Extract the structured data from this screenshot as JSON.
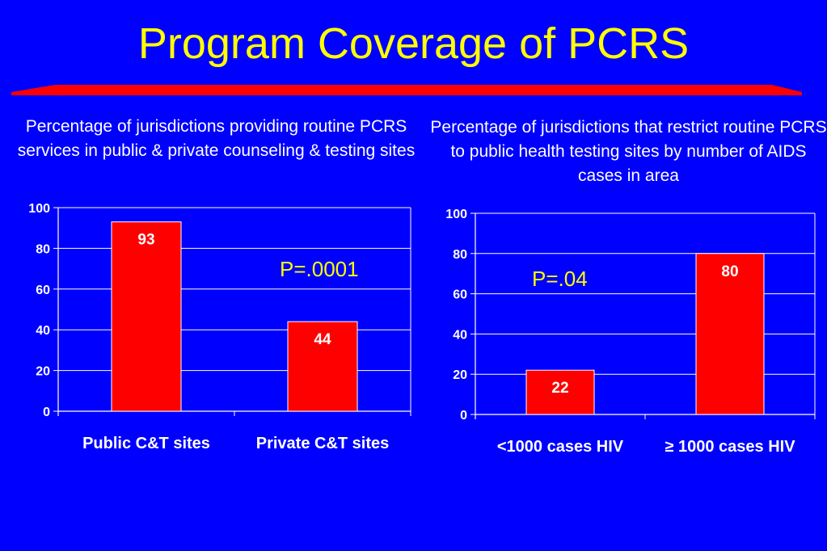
{
  "slide": {
    "title": "Program Coverage of PCRS",
    "colors": {
      "background": "#0000ff",
      "title": "#ffff00",
      "bar": "#ff0000",
      "divider": "#ff0000"
    }
  },
  "left": {
    "subtitle": "Percentage of jurisdictions providing routine PCRS services in public & private counseling & testing sites",
    "p_value": "P=.0001"
  },
  "right": {
    "subtitle": "Percentage of jurisdictions that restrict routine PCRS to public health testing sites by number of AIDS cases in area",
    "p_value": "P=.04"
  },
  "chart_data": [
    {
      "type": "bar",
      "categories": [
        "Public C&T sites",
        "Private C&T sites"
      ],
      "values": [
        93,
        44
      ],
      "data_labels": [
        "93",
        "44"
      ],
      "ylim": [
        0,
        100
      ],
      "yticks": [
        0,
        20,
        40,
        60,
        80,
        100
      ],
      "grid": true,
      "legend": "none"
    },
    {
      "type": "bar",
      "categories": [
        "<1000 cases HIV",
        "≥ 1000 cases HIV"
      ],
      "values": [
        22,
        80
      ],
      "data_labels": [
        "22",
        "80"
      ],
      "ylim": [
        0,
        100
      ],
      "yticks": [
        0,
        20,
        40,
        60,
        80,
        100
      ],
      "grid": true,
      "legend": "none"
    }
  ]
}
